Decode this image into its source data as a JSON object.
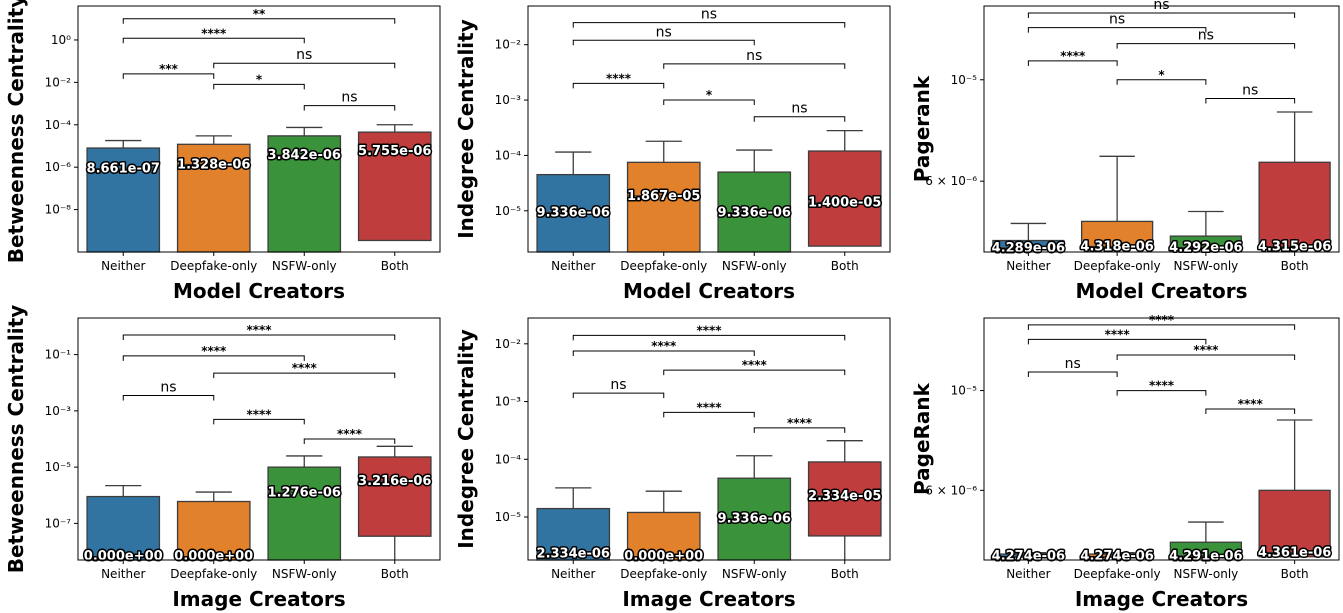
{
  "chart_data": [
    {
      "type": "box",
      "ylabel": "Betweenness Centrality",
      "xlabel": "Model Creators",
      "scale": "log",
      "ylim": [
        1e-10,
        40
      ],
      "y_ticks": [
        {
          "v": 1e-08,
          "label": "10⁻⁸"
        },
        {
          "v": 1e-06,
          "label": "10⁻⁶"
        },
        {
          "v": 0.0001,
          "label": "10⁻⁴"
        },
        {
          "v": 0.01,
          "label": "10⁻²"
        },
        {
          "v": 1,
          "label": "10⁰"
        }
      ],
      "categories": [
        "Neither",
        "Deepfake-only",
        "NSFW-only",
        "Both"
      ],
      "colors": [
        "#3274a1",
        "#e1812c",
        "#3a923a",
        "#c03d3e"
      ],
      "boxes": [
        {
          "low": 1e-10,
          "q1": 1e-10,
          "median": 8.661e-07,
          "q3": 8e-06,
          "whisker_low": 1e-10,
          "whisker_high": 1.8e-05,
          "label": "8.661e-07"
        },
        {
          "low": 1e-10,
          "q1": 1e-10,
          "median": 1.328e-06,
          "q3": 1.2e-05,
          "whisker_low": 1e-10,
          "whisker_high": 3e-05,
          "label": "1.328e-06"
        },
        {
          "low": 1e-10,
          "q1": 1e-10,
          "median": 3.842e-06,
          "q3": 3e-05,
          "whisker_low": 1e-10,
          "whisker_high": 7.5e-05,
          "label": "3.842e-06"
        },
        {
          "low": 3.5e-10,
          "q1": 3.5e-10,
          "median": 5.755e-06,
          "q3": 4.5e-05,
          "whisker_low": 3.5e-10,
          "whisker_high": 0.0001,
          "label": "5.755e-06"
        }
      ],
      "comparisons": [
        {
          "a": 2,
          "b": 3,
          "y": 0.0008,
          "text": "ns"
        },
        {
          "a": 1,
          "b": 2,
          "y": 0.008,
          "text": "*"
        },
        {
          "a": 0,
          "b": 1,
          "y": 0.025,
          "text": "***"
        },
        {
          "a": 1,
          "b": 3,
          "y": 0.08,
          "text": "ns"
        },
        {
          "a": 0,
          "b": 2,
          "y": 1.2,
          "text": "****"
        },
        {
          "a": 0,
          "b": 3,
          "y": 10,
          "text": "**"
        }
      ]
    },
    {
      "type": "box",
      "ylabel": "Indegree Centrality",
      "xlabel": "Model Creators",
      "scale": "log",
      "ylim": [
        1.8e-06,
        0.05
      ],
      "y_ticks": [
        {
          "v": 1e-05,
          "label": "10⁻⁵"
        },
        {
          "v": 0.0001,
          "label": "10⁻⁴"
        },
        {
          "v": 0.001,
          "label": "10⁻³"
        },
        {
          "v": 0.01,
          "label": "10⁻²"
        }
      ],
      "categories": [
        "Neither",
        "Deepfake-only",
        "NSFW-only",
        "Both"
      ],
      "colors": [
        "#3274a1",
        "#e1812c",
        "#3a923a",
        "#c03d3e"
      ],
      "boxes": [
        {
          "low": 1.8e-06,
          "q1": 1.8e-06,
          "median": 9.336e-06,
          "q3": 4.5e-05,
          "whisker_low": 1.8e-06,
          "whisker_high": 0.000115,
          "label": "9.336e-06"
        },
        {
          "low": 1.8e-06,
          "q1": 1.8e-06,
          "median": 1.867e-05,
          "q3": 7.5e-05,
          "whisker_low": 1.8e-06,
          "whisker_high": 0.00018,
          "label": "1.867e-05"
        },
        {
          "low": 1.8e-06,
          "q1": 1.8e-06,
          "median": 9.336e-06,
          "q3": 5e-05,
          "whisker_low": 1.8e-06,
          "whisker_high": 0.000125,
          "label": "9.336e-06"
        },
        {
          "low": 2.3e-06,
          "q1": 2.3e-06,
          "median": 1.4e-05,
          "q3": 0.00012,
          "whisker_low": 2.3e-06,
          "whisker_high": 0.00028,
          "label": "1.400e-05"
        }
      ],
      "comparisons": [
        {
          "a": 2,
          "b": 3,
          "y": 0.0005,
          "text": "ns"
        },
        {
          "a": 1,
          "b": 2,
          "y": 0.001,
          "text": "*"
        },
        {
          "a": 0,
          "b": 1,
          "y": 0.002,
          "text": "****"
        },
        {
          "a": 1,
          "b": 3,
          "y": 0.0045,
          "text": "ns"
        },
        {
          "a": 0,
          "b": 2,
          "y": 0.012,
          "text": "ns"
        },
        {
          "a": 0,
          "b": 3,
          "y": 0.025,
          "text": "ns"
        }
      ]
    },
    {
      "type": "box",
      "ylabel": "Pagerank",
      "xlabel": "Model Creators",
      "scale": "log",
      "ylim": [
        4.2e-06,
        1.45e-05
      ],
      "y_ticks": [
        {
          "v": 6e-06,
          "label": "6 × 10⁻⁶"
        },
        {
          "v": 1e-05,
          "label": "10⁻⁵"
        }
      ],
      "categories": [
        "Neither",
        "Deepfake-only",
        "NSFW-only",
        "Both"
      ],
      "colors": [
        "#3274a1",
        "#e1812c",
        "#3a923a",
        "#c03d3e"
      ],
      "boxes": [
        {
          "low": 4.27e-06,
          "q1": 4.27e-06,
          "median": 4.289e-06,
          "q3": 4.45e-06,
          "whisker_low": 4.27e-06,
          "whisker_high": 4.85e-06,
          "label": "4.289e-06"
        },
        {
          "low": 4.3e-06,
          "q1": 4.3e-06,
          "median": 4.318e-06,
          "q3": 4.9e-06,
          "whisker_low": 4.3e-06,
          "whisker_high": 6.8e-06,
          "label": "4.318e-06"
        },
        {
          "low": 4.27e-06,
          "q1": 4.27e-06,
          "median": 4.292e-06,
          "q3": 4.55e-06,
          "whisker_low": 4.27e-06,
          "whisker_high": 5.15e-06,
          "label": "4.292e-06"
        },
        {
          "low": 4.3e-06,
          "q1": 4.3e-06,
          "median": 4.315e-06,
          "q3": 6.6e-06,
          "whisker_low": 4.3e-06,
          "whisker_high": 8.5e-06,
          "label": "4.315e-06"
        }
      ],
      "comparisons": [
        {
          "a": 2,
          "b": 3,
          "y": 9.1e-06,
          "text": "ns"
        },
        {
          "a": 1,
          "b": 2,
          "y": 1e-05,
          "text": "*"
        },
        {
          "a": 0,
          "b": 1,
          "y": 1.1e-05,
          "text": "****"
        },
        {
          "a": 1,
          "b": 3,
          "y": 1.2e-05,
          "text": "ns"
        },
        {
          "a": 0,
          "b": 2,
          "y": 1.3e-05,
          "text": "ns"
        },
        {
          "a": 0,
          "b": 3,
          "y": 1.4e-05,
          "text": "ns"
        }
      ]
    },
    {
      "type": "box",
      "ylabel": "Betweenness Centrality",
      "xlabel": "Image Creators",
      "scale": "log",
      "ylim": [
        5e-09,
        2
      ],
      "y_ticks": [
        {
          "v": 1e-07,
          "label": "10⁻⁷"
        },
        {
          "v": 1e-05,
          "label": "10⁻⁵"
        },
        {
          "v": 0.001,
          "label": "10⁻³"
        },
        {
          "v": 0.1,
          "label": "10⁻¹"
        }
      ],
      "categories": [
        "Neither",
        "Deepfake-only",
        "NSFW-only",
        "Both"
      ],
      "colors": [
        "#3274a1",
        "#e1812c",
        "#3a923a",
        "#c03d3e"
      ],
      "boxes": [
        {
          "low": 5e-09,
          "q1": 5e-09,
          "median": 5e-09,
          "q3": 9e-07,
          "whisker_low": 5e-09,
          "whisker_high": 2.2e-06,
          "label": "0.000e+00"
        },
        {
          "low": 5e-09,
          "q1": 5e-09,
          "median": 5e-09,
          "q3": 6e-07,
          "whisker_low": 5e-09,
          "whisker_high": 1.3e-06,
          "label": "0.000e+00"
        },
        {
          "low": 5e-09,
          "q1": 5e-09,
          "median": 1.276e-06,
          "q3": 1e-05,
          "whisker_low": 5e-09,
          "whisker_high": 2.5e-05,
          "label": "1.276e-06"
        },
        {
          "low": 5e-09,
          "q1": 3.5e-08,
          "median": 3.216e-06,
          "q3": 2.3e-05,
          "whisker_low": 5e-09,
          "whisker_high": 5.5e-05,
          "label": "3.216e-06"
        }
      ],
      "comparisons": [
        {
          "a": 2,
          "b": 3,
          "y": 0.0001,
          "text": "****"
        },
        {
          "a": 1,
          "b": 2,
          "y": 0.0005,
          "text": "****"
        },
        {
          "a": 0,
          "b": 1,
          "y": 0.0035,
          "text": "ns"
        },
        {
          "a": 1,
          "b": 3,
          "y": 0.022,
          "text": "****"
        },
        {
          "a": 0,
          "b": 2,
          "y": 0.09,
          "text": "****"
        },
        {
          "a": 0,
          "b": 3,
          "y": 0.5,
          "text": "****"
        }
      ]
    },
    {
      "type": "box",
      "ylabel": "Indegree Centrality",
      "xlabel": "Image Creators",
      "scale": "log",
      "ylim": [
        1.8e-06,
        0.028
      ],
      "y_ticks": [
        {
          "v": 1e-05,
          "label": "10⁻⁵"
        },
        {
          "v": 0.0001,
          "label": "10⁻⁴"
        },
        {
          "v": 0.001,
          "label": "10⁻³"
        },
        {
          "v": 0.01,
          "label": "10⁻²"
        }
      ],
      "categories": [
        "Neither",
        "Deepfake-only",
        "NSFW-only",
        "Both"
      ],
      "colors": [
        "#3274a1",
        "#e1812c",
        "#3a923a",
        "#c03d3e"
      ],
      "boxes": [
        {
          "low": 1.8e-06,
          "q1": 1.8e-06,
          "median": 2.334e-06,
          "q3": 1.4e-05,
          "whisker_low": 1.8e-06,
          "whisker_high": 3.2e-05,
          "label": "2.334e-06"
        },
        {
          "low": 1.8e-06,
          "q1": 1.8e-06,
          "median": 1.8e-06,
          "q3": 1.2e-05,
          "whisker_low": 1.8e-06,
          "whisker_high": 2.8e-05,
          "label": "0.000e+00"
        },
        {
          "low": 1.8e-06,
          "q1": 1.8e-06,
          "median": 9.336e-06,
          "q3": 4.7e-05,
          "whisker_low": 1.8e-06,
          "whisker_high": 0.000115,
          "label": "9.336e-06"
        },
        {
          "low": 1.8e-06,
          "q1": 4.7e-06,
          "median": 2.334e-05,
          "q3": 9e-05,
          "whisker_low": 1.8e-06,
          "whisker_high": 0.00021,
          "label": "2.334e-05"
        }
      ],
      "comparisons": [
        {
          "a": 2,
          "b": 3,
          "y": 0.00035,
          "text": "****"
        },
        {
          "a": 1,
          "b": 2,
          "y": 0.00065,
          "text": "****"
        },
        {
          "a": 0,
          "b": 1,
          "y": 0.0014,
          "text": "ns"
        },
        {
          "a": 1,
          "b": 3,
          "y": 0.0035,
          "text": "****"
        },
        {
          "a": 0,
          "b": 2,
          "y": 0.0075,
          "text": "****"
        },
        {
          "a": 0,
          "b": 3,
          "y": 0.014,
          "text": "****"
        }
      ]
    },
    {
      "type": "box",
      "ylabel": "PageRank",
      "xlabel": "Image Creators",
      "scale": "log",
      "ylim": [
        4.2e-06,
        1.45e-05
      ],
      "y_ticks": [
        {
          "v": 6e-06,
          "label": "6 × 10⁻⁶"
        },
        {
          "v": 1e-05,
          "label": "10⁻⁵"
        }
      ],
      "categories": [
        "Neither",
        "Deepfake-only",
        "NSFW-only",
        "Both"
      ],
      "colors": [
        "#3274a1",
        "#e1812c",
        "#3a923a",
        "#c03d3e"
      ],
      "boxes": [
        {
          "low": 4.26e-06,
          "q1": 4.26e-06,
          "median": 4.274e-06,
          "q3": 4.33e-06,
          "whisker_low": 4.26e-06,
          "whisker_high": 4.36e-06,
          "label": "4.274e-06"
        },
        {
          "low": 4.26e-06,
          "q1": 4.26e-06,
          "median": 4.274e-06,
          "q3": 4.33e-06,
          "whisker_low": 4.26e-06,
          "whisker_high": 4.36e-06,
          "label": "4.274e-06"
        },
        {
          "low": 4.26e-06,
          "q1": 4.26e-06,
          "median": 4.291e-06,
          "q3": 4.6e-06,
          "whisker_low": 4.26e-06,
          "whisker_high": 5.1e-06,
          "label": "4.291e-06"
        },
        {
          "low": 4.27e-06,
          "q1": 4.27e-06,
          "median": 4.361e-06,
          "q3": 6e-06,
          "whisker_low": 4.27e-06,
          "whisker_high": 8.6e-06,
          "label": "4.361e-06"
        }
      ],
      "comparisons": [
        {
          "a": 2,
          "b": 3,
          "y": 9.1e-06,
          "text": "****"
        },
        {
          "a": 1,
          "b": 2,
          "y": 1e-05,
          "text": "****"
        },
        {
          "a": 0,
          "b": 1,
          "y": 1.1e-05,
          "text": "ns"
        },
        {
          "a": 1,
          "b": 3,
          "y": 1.2e-05,
          "text": "****"
        },
        {
          "a": 0,
          "b": 2,
          "y": 1.3e-05,
          "text": "****"
        },
        {
          "a": 0,
          "b": 3,
          "y": 1.4e-05,
          "text": "****"
        }
      ]
    }
  ]
}
